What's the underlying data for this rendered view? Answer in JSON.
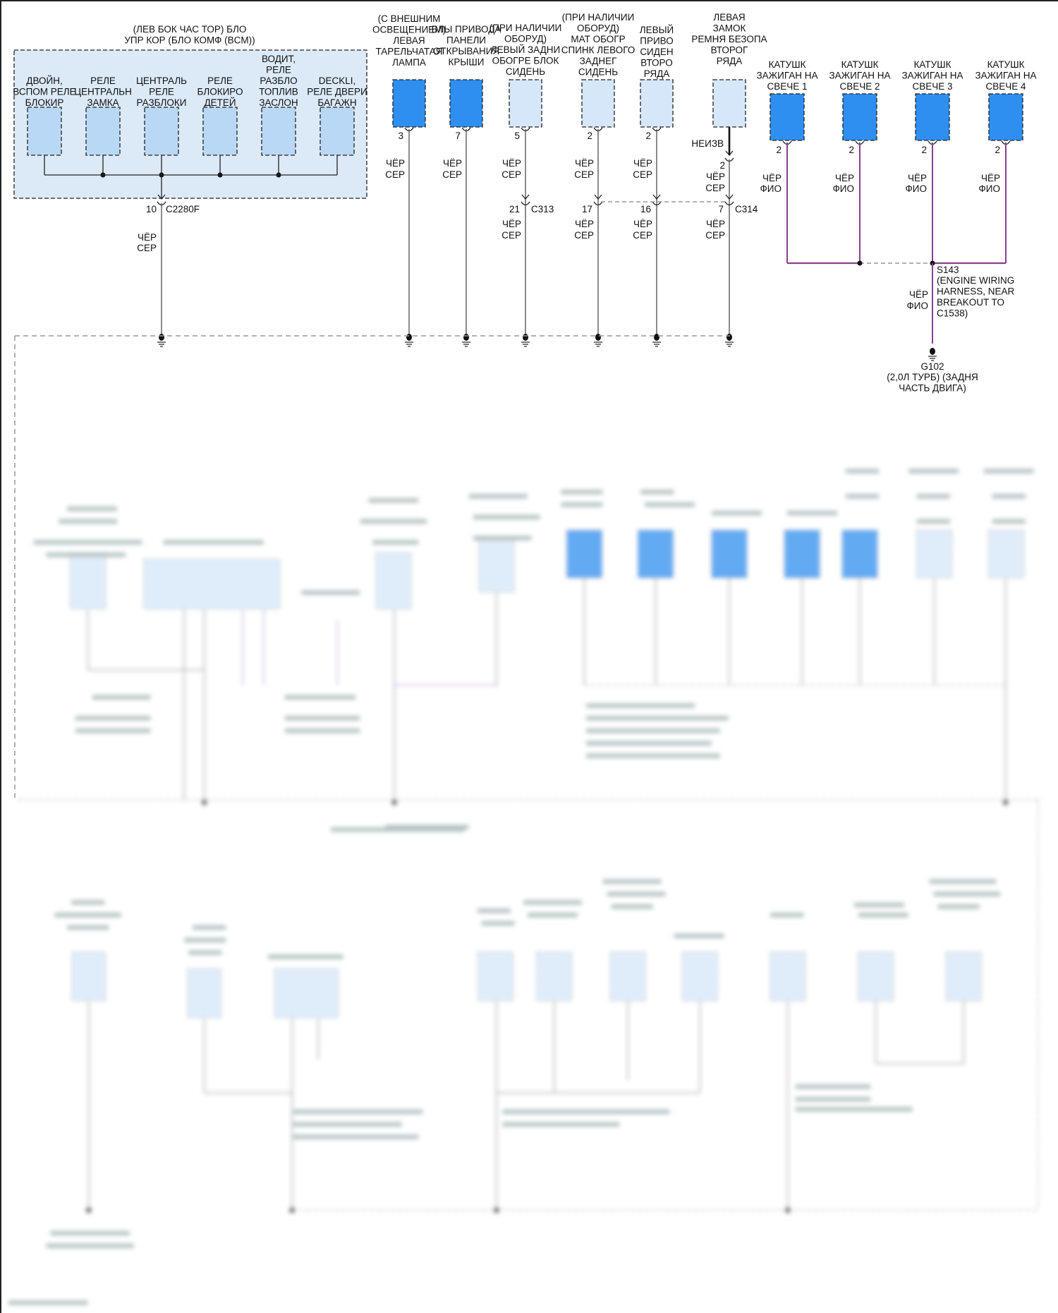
{
  "colors": {
    "connector_dark": "#2f8ff0",
    "connector_light": "#d5e7f9",
    "module_fill": "#dceaf8",
    "wire_black_gray": "#5a5a5a",
    "wire_black_violet": "#8b3f8f"
  },
  "bcm": {
    "title": [
      "(ЛЕВ БОК ЧАС ТОР) БЛО",
      "УПР КОР (БЛО КОМФ (BCM))"
    ],
    "relays": [
      {
        "label": [
          "ДВОЙН,",
          "ВСПОМ РЕЛЕ",
          "БЛОКИР"
        ]
      },
      {
        "label": [
          "РЕЛЕ",
          "ЦЕНТРАЛЬН",
          "ЗАМКА"
        ]
      },
      {
        "label": [
          "ЦЕНТРАЛЬ",
          "РЕЛЕ",
          "РАЗБЛОКИ"
        ]
      },
      {
        "label": [
          "РЕЛЕ",
          "БЛОКИРО",
          "ДЕТЕЙ"
        ]
      },
      {
        "label": [
          "ВОДИТ,",
          "РЕЛЕ",
          "РАЗБЛО",
          "ТОПЛИВ",
          "ЗАСЛОН"
        ]
      },
      {
        "label": [
          "DECKLI,",
          "РЕЛЕ ДВЕРИ",
          "БАГАЖН"
        ]
      }
    ],
    "connector": {
      "pin": "10",
      "id": "C2280F"
    },
    "wire": [
      "ЧЁР",
      "СЕР"
    ]
  },
  "components": [
    {
      "label": [
        "(С ВНЕШНИМ",
        "ОСВЕЩЕНИЕМ)",
        "ЛЕВАЯ",
        "ТАРЕЛЬЧАТАЯ",
        "ЛАМПА"
      ],
      "type": "dark",
      "pin": "3",
      "wire": [
        "ЧЁР",
        "СЕР"
      ]
    },
    {
      "label": [
        "БЛЫ ПРИВОДА",
        "ПАНЕЛИ",
        "ОТКРЫВАНИЯ",
        "КРЫШИ"
      ],
      "type": "dark",
      "pin": "7",
      "wire": [
        "ЧЁР",
        "СЕР"
      ]
    },
    {
      "label": [
        "(ПРИ НАЛИЧИИ",
        "ОБОРУД)",
        "ЛЕВЫЙ ЗАДНИ",
        "ОБОГРЕ БЛОК",
        "СИДЕНЬ"
      ],
      "type": "light",
      "pin": "5",
      "wire": [
        "ЧЁР",
        "СЕР"
      ],
      "connector": {
        "pin": "21",
        "id": "C313"
      },
      "wire2": [
        "ЧЁР",
        "СЕР"
      ]
    },
    {
      "label": [
        "(ПРИ НАЛИЧИИ",
        "ОБОРУД)",
        "МАТ ОБОГР",
        "СПИНК ЛЕВОГО",
        "ЗАДНЕГ",
        "СИДЕНЬ"
      ],
      "type": "light",
      "pin": "2",
      "wire": [
        "ЧЁР",
        "СЕР"
      ],
      "connector": {
        "pin": "17",
        "id": ""
      },
      "wire2": [
        "ЧЁР",
        "СЕР"
      ]
    },
    {
      "label": [
        "ЛЕВЫЙ",
        "ПРИВО",
        "СИДЕН",
        "ВТОРО",
        "РЯДА"
      ],
      "type": "light",
      "pin": "2",
      "wire": [
        "ЧЁР",
        "СЕР"
      ],
      "connector": {
        "pin": "16",
        "id": ""
      },
      "wire2": [
        "ЧЁР",
        "СЕР"
      ]
    },
    {
      "label": [
        "ЛЕВАЯ",
        "ЗАМОК",
        "РЕМНЯ БЕЗОПА",
        "ВТОРОГ",
        "РЯДА"
      ],
      "type": "light",
      "lead_wire": "НЕИЗВ",
      "pin": "2",
      "wire": [
        "ЧЁР",
        "СЕР"
      ],
      "connector": {
        "pin": "7",
        "id": "C314"
      },
      "wire2": [
        "ЧЁР",
        "СЕР"
      ]
    }
  ],
  "coils": [
    {
      "label": [
        "КАТУШК",
        "ЗАЖИГАН НА",
        "СВЕЧЕ 1"
      ],
      "pin": "2",
      "wire": [
        "ЧЁР",
        "ФИО"
      ]
    },
    {
      "label": [
        "КАТУШК",
        "ЗАЖИГАН НА",
        "СВЕЧЕ 2"
      ],
      "pin": "2",
      "wire": [
        "ЧЁР",
        "ФИО"
      ]
    },
    {
      "label": [
        "КАТУШК",
        "ЗАЖИГАН НА",
        "СВЕЧЕ 3"
      ],
      "pin": "2",
      "wire": [
        "ЧЁР",
        "ФИО"
      ]
    },
    {
      "label": [
        "КАТУШК",
        "ЗАЖИГАН НА",
        "СВЕЧЕ 4"
      ],
      "pin": "2",
      "wire": [
        "ЧЁР",
        "ФИО"
      ]
    }
  ],
  "splice": {
    "id": "S143",
    "desc": [
      "(ENGINE WIRING",
      "HARNESS, NEAR",
      "BREAKOUT TO",
      "C1538)"
    ],
    "wire": [
      "ЧЁР",
      "ФИО"
    ]
  },
  "ground": {
    "id": "G102",
    "desc": [
      "(2,0Л ТУРБ) (ЗАДНЯ",
      "ЧАСТЬ ДВИГА)"
    ]
  }
}
